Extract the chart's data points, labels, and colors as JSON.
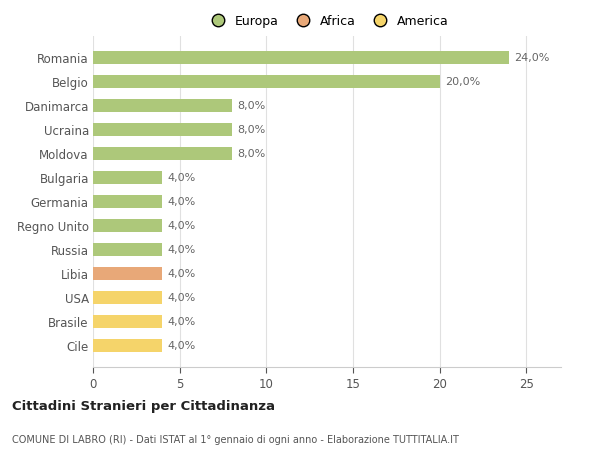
{
  "categories": [
    "Romania",
    "Belgio",
    "Danimarca",
    "Ucraina",
    "Moldova",
    "Bulgaria",
    "Germania",
    "Regno Unito",
    "Russia",
    "Libia",
    "USA",
    "Brasile",
    "Cile"
  ],
  "values": [
    24.0,
    20.0,
    8.0,
    8.0,
    8.0,
    4.0,
    4.0,
    4.0,
    4.0,
    4.0,
    4.0,
    4.0,
    4.0
  ],
  "labels": [
    "24,0%",
    "20,0%",
    "8,0%",
    "8,0%",
    "8,0%",
    "4,0%",
    "4,0%",
    "4,0%",
    "4,0%",
    "4,0%",
    "4,0%",
    "4,0%",
    "4,0%"
  ],
  "colors": [
    "#adc87a",
    "#adc87a",
    "#adc87a",
    "#adc87a",
    "#adc87a",
    "#adc87a",
    "#adc87a",
    "#adc87a",
    "#adc87a",
    "#e8a878",
    "#f5d46a",
    "#f5d46a",
    "#f5d46a"
  ],
  "legend": [
    {
      "label": "Europa",
      "color": "#adc87a"
    },
    {
      "label": "Africa",
      "color": "#e8a878"
    },
    {
      "label": "America",
      "color": "#f5d46a"
    }
  ],
  "xlim": [
    0,
    27
  ],
  "xticks": [
    0,
    5,
    10,
    15,
    20,
    25
  ],
  "title": "Cittadini Stranieri per Cittadinanza",
  "subtitle": "COMUNE DI LABRO (RI) - Dati ISTAT al 1° gennaio di ogni anno - Elaborazione TUTTITALIA.IT",
  "bg_color": "#ffffff",
  "grid_color": "#e0e0e0",
  "bar_label_fontsize": 8,
  "ytick_fontsize": 8.5,
  "xtick_fontsize": 8.5,
  "bar_height": 0.55
}
